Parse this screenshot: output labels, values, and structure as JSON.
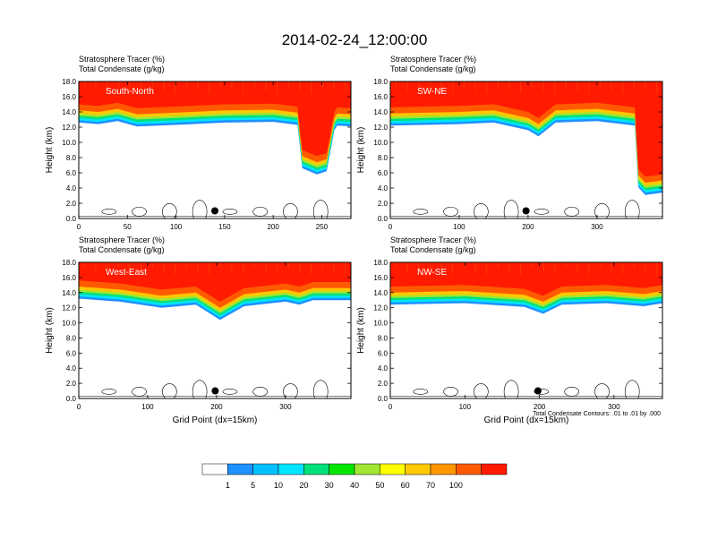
{
  "figure": {
    "title": "2014-02-24_12:00:00",
    "contour_note": "Total Condensate Contours: .01 to .01 by .000",
    "colorbar": {
      "labels": [
        "1",
        "5",
        "10",
        "20",
        "30",
        "40",
        "50",
        "60",
        "70",
        "100"
      ],
      "colors": [
        "#ffffff",
        "#1e90ff",
        "#00bfff",
        "#00e5ff",
        "#00e07a",
        "#00e600",
        "#a0e632",
        "#ffff00",
        "#ffc800",
        "#ff9600",
        "#ff5a00",
        "#ff1a00"
      ]
    }
  },
  "chart_data": [
    {
      "type": "heatmap",
      "panel": "South-North",
      "title_lines": [
        "Stratosphere Tracer   (%)",
        "Total Condensate   (g/kg)"
      ],
      "ylabel": "Height (km)",
      "xlabel": "",
      "x_ticks": [
        0,
        50,
        100,
        150,
        200,
        250
      ],
      "y_ticks": [
        "0.0",
        "2.0",
        "4.0",
        "6.0",
        "8.0",
        "10.0",
        "12.0",
        "14.0",
        "16.0",
        "18.0"
      ],
      "xlim": [
        0,
        280
      ],
      "ylim": [
        0,
        18
      ],
      "tropopause_km": [
        [
          0,
          15.0
        ],
        [
          20,
          14.8
        ],
        [
          40,
          15.2
        ],
        [
          60,
          14.5
        ],
        [
          100,
          14.7
        ],
        [
          150,
          15.0
        ],
        [
          200,
          15.1
        ],
        [
          225,
          14.7
        ],
        [
          230,
          9.0
        ],
        [
          245,
          8.2
        ],
        [
          255,
          8.6
        ],
        [
          263,
          14.0
        ],
        [
          266,
          14.6
        ],
        [
          280,
          14.5
        ]
      ],
      "marker": {
        "x": 140,
        "y_km": 1.0
      }
    },
    {
      "type": "heatmap",
      "panel": "SW-NE",
      "title_lines": [
        "Stratosphere Tracer   (%)",
        "Total Condensate   (g/kg)"
      ],
      "ylabel": "Height (km)",
      "xlabel": "",
      "x_ticks": [
        0,
        100,
        200,
        300
      ],
      "y_ticks": [
        "0.0",
        "2.0",
        "4.0",
        "6.0",
        "8.0",
        "10.0",
        "12.0",
        "14.0",
        "16.0",
        "18.0"
      ],
      "xlim": [
        0,
        395
      ],
      "ylim": [
        0,
        18
      ],
      "tropopause_km": [
        [
          0,
          14.6
        ],
        [
          100,
          14.8
        ],
        [
          150,
          15.0
        ],
        [
          200,
          14.0
        ],
        [
          215,
          13.2
        ],
        [
          240,
          15.0
        ],
        [
          300,
          15.2
        ],
        [
          355,
          14.6
        ],
        [
          360,
          6.5
        ],
        [
          370,
          5.5
        ],
        [
          395,
          5.8
        ]
      ],
      "marker": {
        "x": 197,
        "y_km": 1.0
      }
    },
    {
      "type": "heatmap",
      "panel": "West-East",
      "title_lines": [
        "Stratosphere Tracer   (%)",
        "Total Condensate   (g/kg)"
      ],
      "ylabel": "Height (km)",
      "xlabel": "Grid Point (dx=15km)",
      "x_ticks": [
        0,
        100,
        200,
        300
      ],
      "y_ticks": [
        "0.0",
        "2.0",
        "4.0",
        "6.0",
        "8.0",
        "10.0",
        "12.0",
        "14.0",
        "16.0",
        "18.0"
      ],
      "xlim": [
        0,
        395
      ],
      "ylim": [
        0,
        18
      ],
      "tropopause_km": [
        [
          0,
          15.6
        ],
        [
          60,
          15.2
        ],
        [
          120,
          14.4
        ],
        [
          170,
          14.8
        ],
        [
          205,
          12.8
        ],
        [
          240,
          14.6
        ],
        [
          300,
          15.2
        ],
        [
          320,
          14.8
        ],
        [
          340,
          15.4
        ],
        [
          395,
          15.4
        ]
      ],
      "marker": {
        "x": 198,
        "y_km": 1.0
      }
    },
    {
      "type": "heatmap",
      "panel": "NW-SE",
      "title_lines": [
        "Stratosphere Tracer   (%)",
        "Total Condensate   (g/kg)"
      ],
      "ylabel": "Height (km)",
      "xlabel": "Grid Point (dx=15km)",
      "x_ticks": [
        0,
        100,
        200,
        300
      ],
      "y_ticks": [
        "0.0",
        "2.0",
        "4.0",
        "6.0",
        "8.0",
        "10.0",
        "12.0",
        "14.0",
        "16.0",
        "18.0"
      ],
      "xlim": [
        0,
        365
      ],
      "ylim": [
        0,
        18
      ],
      "tropopause_km": [
        [
          0,
          14.8
        ],
        [
          100,
          15.0
        ],
        [
          180,
          14.5
        ],
        [
          205,
          13.6
        ],
        [
          230,
          14.8
        ],
        [
          290,
          15.0
        ],
        [
          340,
          14.6
        ],
        [
          365,
          15.0
        ]
      ],
      "marker": {
        "x": 198,
        "y_km": 1.0
      }
    }
  ]
}
